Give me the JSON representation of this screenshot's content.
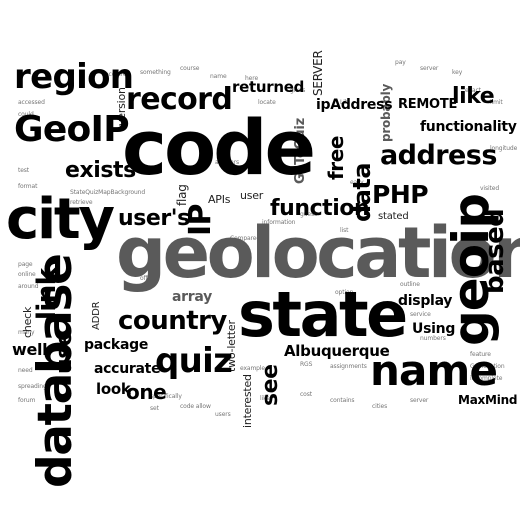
{
  "cloud": {
    "words": {
      "code": "code",
      "geolocation": "geolocation",
      "state": "state",
      "city": "city",
      "database": "database",
      "geoip_vertical": "geoip",
      "region": "region",
      "record": "record",
      "geoip_title": "GeoIP",
      "country": "country",
      "quiz": "quiz",
      "name": "name",
      "address": "address",
      "based": "based",
      "link": "link",
      "exists": "exists",
      "users": "user's",
      "function": "function",
      "php": "PHP",
      "data": "data",
      "free": "free",
      "ip": "IP",
      "like": "like",
      "one": "one",
      "use": "use",
      "see": "see",
      "returned": "returned",
      "ipaddress": "ipAddress",
      "remote": "REMOTE",
      "functionality": "functionality",
      "display": "display",
      "using": "Using",
      "albuquerque": "Albuquerque",
      "maxmind": "MaxMind",
      "accurate": "accurate",
      "look": "look",
      "package": "package",
      "array": "array",
      "well": "well",
      "check": "check",
      "addr": "ADDR",
      "two_letter": "two-letter",
      "interested": "interested",
      "server": "SERVER",
      "gotoquiz": "GoToQuiz",
      "flag": "flag",
      "apis": "APIs",
      "user": "user",
      "version": "version",
      "probably": "probably",
      "stated": "stated"
    }
  }
}
